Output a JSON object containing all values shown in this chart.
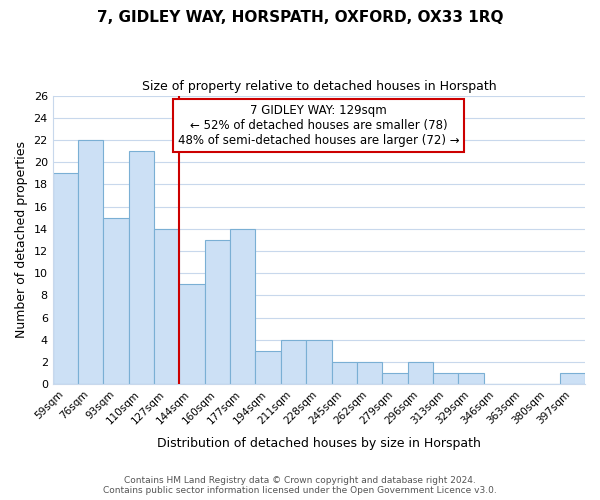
{
  "title": "7, GIDLEY WAY, HORSPATH, OXFORD, OX33 1RQ",
  "subtitle": "Size of property relative to detached houses in Horspath",
  "xlabel": "Distribution of detached houses by size in Horspath",
  "ylabel": "Number of detached properties",
  "categories": [
    "59sqm",
    "76sqm",
    "93sqm",
    "110sqm",
    "127sqm",
    "144sqm",
    "160sqm",
    "177sqm",
    "194sqm",
    "211sqm",
    "228sqm",
    "245sqm",
    "262sqm",
    "279sqm",
    "296sqm",
    "313sqm",
    "329sqm",
    "346sqm",
    "363sqm",
    "380sqm",
    "397sqm"
  ],
  "values": [
    19,
    22,
    15,
    21,
    14,
    9,
    13,
    14,
    3,
    4,
    4,
    2,
    2,
    1,
    2,
    1,
    1,
    0,
    0,
    0,
    1
  ],
  "highlight_index": 4,
  "bar_color": "#cce0f5",
  "bar_edge_color": "#7aafd4",
  "highlight_line_color": "#cc0000",
  "annotation_box_color": "#cc0000",
  "ylim": [
    0,
    26
  ],
  "yticks": [
    0,
    2,
    4,
    6,
    8,
    10,
    12,
    14,
    16,
    18,
    20,
    22,
    24,
    26
  ],
  "annotation_text": "7 GIDLEY WAY: 129sqm\n← 52% of detached houses are smaller (78)\n48% of semi-detached houses are larger (72) →",
  "footer_line1": "Contains HM Land Registry data © Crown copyright and database right 2024.",
  "footer_line2": "Contains public sector information licensed under the Open Government Licence v3.0.",
  "background_color": "#ffffff",
  "grid_color": "#c8d8ec"
}
